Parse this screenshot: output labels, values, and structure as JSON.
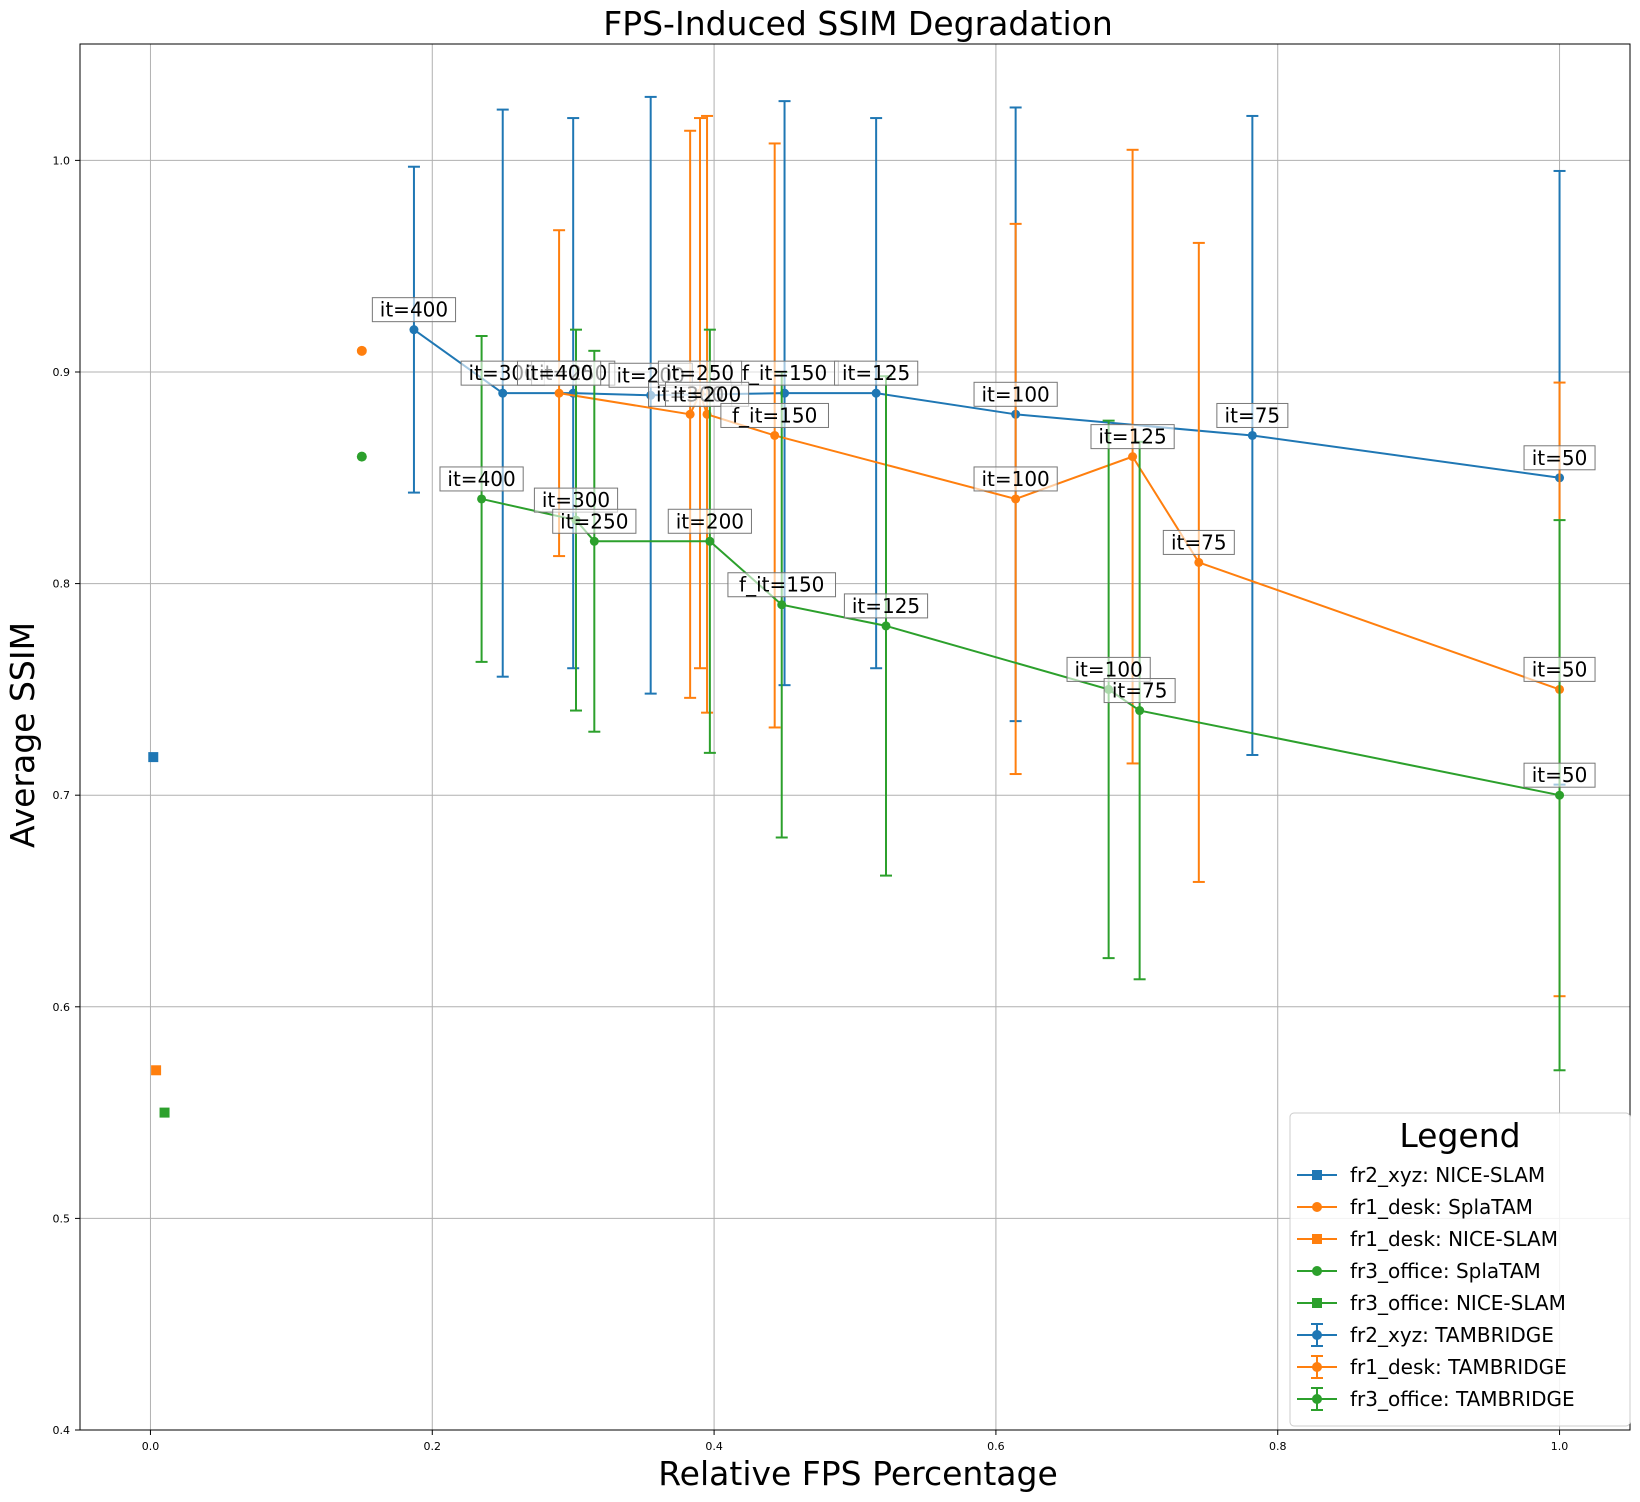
{
  "chart_data": {
    "type": "scatter",
    "title": "FPS-Induced SSIM Degradation",
    "xlabel": "Relative FPS Percentage",
    "ylabel": "Average SSIM",
    "xlim": [
      -0.05,
      1.05
    ],
    "ylim": [
      0.4,
      1.055
    ],
    "xticks": [
      "0.0",
      "0.2",
      "0.4",
      "0.6",
      "0.8",
      "1.0"
    ],
    "yticks": [
      "0.4",
      "0.5",
      "0.6",
      "0.7",
      "0.8",
      "0.9",
      "1.0"
    ],
    "grid": true,
    "legend_title": "Legend",
    "legend_position": "bottom-right",
    "colors": {
      "blue": "#1f77b4",
      "orange": "#ff7f0e",
      "green": "#2ca02c"
    },
    "series": [
      {
        "name": "fr2_xyz: NICE-SLAM",
        "color": "#1f77b4",
        "marker": "square",
        "points": [
          [
            0.002,
            0.718
          ]
        ]
      },
      {
        "name": "fr1_desk: SplaTAM",
        "color": "#ff7f0e",
        "marker": "circle",
        "points": [
          [
            0.15,
            0.91
          ]
        ]
      },
      {
        "name": "fr1_desk: NICE-SLAM",
        "color": "#ff7f0e",
        "marker": "square",
        "points": [
          [
            0.004,
            0.57
          ]
        ]
      },
      {
        "name": "fr3_office: SplaTAM",
        "color": "#2ca02c",
        "marker": "circle",
        "points": [
          [
            0.15,
            0.86
          ]
        ]
      },
      {
        "name": "fr3_office: NICE-SLAM",
        "color": "#2ca02c",
        "marker": "square",
        "points": [
          [
            0.01,
            0.55
          ]
        ]
      },
      {
        "name": "fr2_xyz: TAMBRIDGE",
        "color": "#1f77b4",
        "marker": "errorbar",
        "points": [
          {
            "x": 0.187,
            "y": 0.92,
            "err": 0.077,
            "label": "it=400"
          },
          {
            "x": 0.25,
            "y": 0.89,
            "err": 0.134,
            "label": "it=300"
          },
          {
            "x": 0.3,
            "y": 0.89,
            "err": 0.13,
            "label": "it=250"
          },
          {
            "x": 0.355,
            "y": 0.889,
            "err": 0.141,
            "label": "it=200"
          },
          {
            "x": 0.45,
            "y": 0.89,
            "err": 0.138,
            "label": "f_it=150"
          },
          {
            "x": 0.515,
            "y": 0.89,
            "err": 0.13,
            "label": "it=125"
          },
          {
            "x": 0.614,
            "y": 0.88,
            "err": 0.145,
            "label": "it=100"
          },
          {
            "x": 0.782,
            "y": 0.87,
            "err": 0.151,
            "label": "it=75"
          },
          {
            "x": 1.0,
            "y": 0.85,
            "err": 0.145,
            "label": "it=50"
          }
        ]
      },
      {
        "name": "fr1_desk: TAMBRIDGE",
        "color": "#ff7f0e",
        "marker": "errorbar",
        "points": [
          {
            "x": 0.29,
            "y": 0.89,
            "err": 0.077,
            "label": "it=400"
          },
          {
            "x": 0.383,
            "y": 0.88,
            "err": 0.134,
            "label": "it=300"
          },
          {
            "x": 0.39,
            "y": 0.89,
            "err": 0.13,
            "label": "it=250"
          },
          {
            "x": 0.395,
            "y": 0.88,
            "err": 0.141,
            "label": "it=200"
          },
          {
            "x": 0.443,
            "y": 0.87,
            "err": 0.138,
            "label": "f_it=150"
          },
          {
            "x": 0.614,
            "y": 0.84,
            "err": 0.13,
            "label": "it=100"
          },
          {
            "x": 0.697,
            "y": 0.86,
            "err": 0.145,
            "label": "it=125"
          },
          {
            "x": 0.744,
            "y": 0.81,
            "err": 0.151,
            "label": "it=75"
          },
          {
            "x": 1.0,
            "y": 0.75,
            "err": 0.145,
            "label": "it=50"
          }
        ]
      },
      {
        "name": "fr3_office: TAMBRIDGE",
        "color": "#2ca02c",
        "marker": "errorbar",
        "points": [
          {
            "x": 0.235,
            "y": 0.84,
            "err": 0.077,
            "label": "it=400"
          },
          {
            "x": 0.302,
            "y": 0.83,
            "err": 0.09,
            "label": "it=300"
          },
          {
            "x": 0.315,
            "y": 0.82,
            "err": 0.09,
            "label": "it=250"
          },
          {
            "x": 0.397,
            "y": 0.82,
            "err": 0.1,
            "label": "it=200"
          },
          {
            "x": 0.448,
            "y": 0.79,
            "err": 0.11,
            "label": "f_it=150"
          },
          {
            "x": 0.522,
            "y": 0.78,
            "err": 0.118,
            "label": "it=125"
          },
          {
            "x": 0.68,
            "y": 0.75,
            "err": 0.127,
            "label": "it=100"
          },
          {
            "x": 0.702,
            "y": 0.74,
            "err": 0.127,
            "label": "it=75"
          },
          {
            "x": 1.0,
            "y": 0.7,
            "err": 0.13,
            "label": "it=50"
          }
        ]
      }
    ]
  }
}
